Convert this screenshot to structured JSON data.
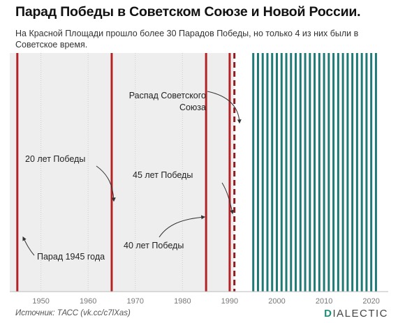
{
  "header": {
    "title": "Парад Победы в Советском Союзе и Новой России.",
    "subtitle": "На Красной Площади прошло более 30 Парадов Победы, но только 4 из них были в Советское время."
  },
  "footer": {
    "source": "Источник: ТАСС (vk.cc/c7lXas)",
    "brand_mark": "D",
    "brand_rest": "IALECTIC"
  },
  "chart_data": {
    "type": "timeline",
    "title": "Парад Победы в Советском Союзе и Новой России.",
    "x_ticks": [
      1950,
      1960,
      1970,
      1980,
      1990,
      2000,
      2010,
      2020
    ],
    "xlim": [
      1943.4,
      2023.6
    ],
    "soviet_parades": [
      1945,
      1965,
      1985,
      1990
    ],
    "ussr_collapse_year": 1991,
    "modern_parades": [
      1995,
      1996,
      1997,
      1998,
      1999,
      2000,
      2001,
      2002,
      2003,
      2004,
      2005,
      2006,
      2007,
      2008,
      2009,
      2010,
      2011,
      2012,
      2013,
      2014,
      2015,
      2016,
      2017,
      2018,
      2019,
      2020,
      2021
    ],
    "soviet_shading": [
      1943.4,
      1991
    ],
    "annotations": [
      {
        "text": "Парад 1945 года",
        "year": 1945
      },
      {
        "text": "20 лет Победы",
        "year": 1965
      },
      {
        "text": "40 лет Победы",
        "year": 1985
      },
      {
        "text": "45 лет Победы",
        "year": 1990
      },
      {
        "text_lines": [
          "Распад Советского",
          "Союза"
        ],
        "year": 1991
      }
    ],
    "colors": {
      "soviet_line": "#b52226",
      "collapse_line": "#8e1d1f",
      "modern_line": "#1f7a75",
      "soviet_bg": "#eeeeee",
      "grid": "#cfcfcf"
    }
  }
}
